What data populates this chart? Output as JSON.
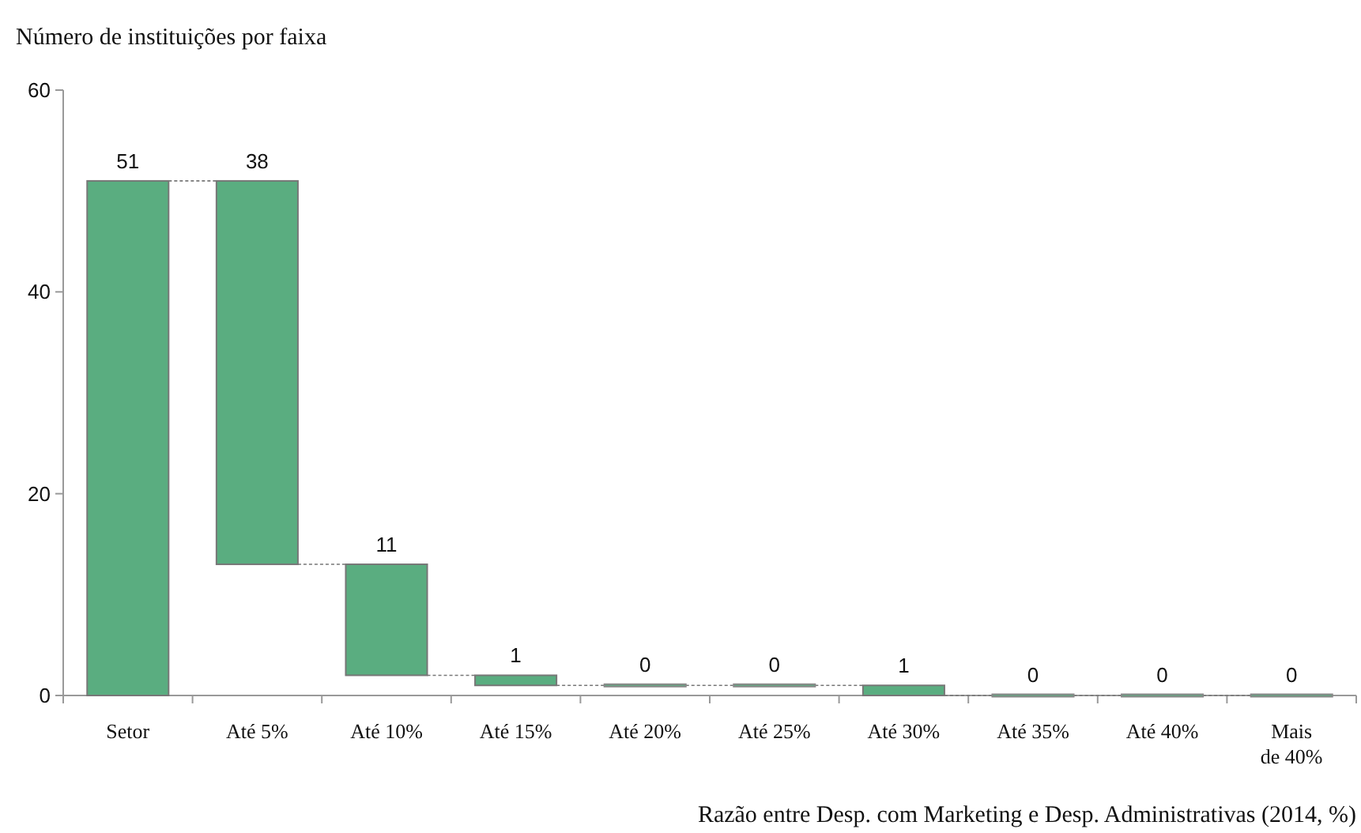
{
  "chart_data": {
    "type": "bar",
    "ylabel": "Número de instituições por faixa",
    "xlabel": "Razão entre Desp. com Marketing e Desp. Administrativas (2014, %)",
    "categories": [
      "Setor",
      "Até 5%",
      "Até 10%",
      "Até 15%",
      "Até 20%",
      "Até 25%",
      "Até 30%",
      "Até 35%",
      "Até 40%",
      "Mais de 40%"
    ],
    "values": [
      51,
      38,
      11,
      1,
      0,
      0,
      1,
      0,
      0,
      0
    ],
    "base": [
      0,
      13,
      2,
      1,
      1,
      1,
      0,
      0,
      0,
      0
    ],
    "color": "#5aad80",
    "ylim": [
      0,
      60
    ],
    "yticks": [
      0,
      20,
      40,
      60
    ],
    "data_labels": true,
    "grid": false
  }
}
